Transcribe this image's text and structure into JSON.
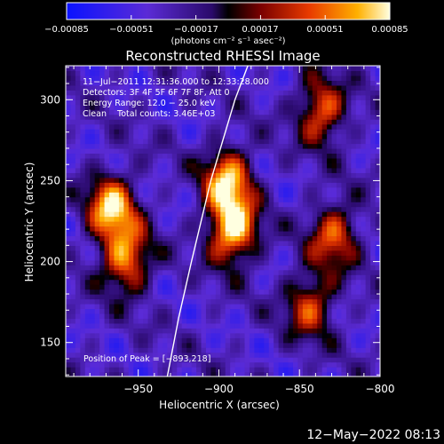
{
  "chart_data": {
    "type": "heatmap",
    "title": "Reconstructed RHESSI Image",
    "xlabel": "Heliocentric X (arcsec)",
    "ylabel": "Heliocentric Y (arcsec)",
    "xlim": [
      -995,
      -800
    ],
    "ylim": [
      129,
      321
    ],
    "xticks": [
      -950,
      -900,
      -850,
      -800
    ],
    "yticks": [
      150,
      200,
      250,
      300
    ],
    "xtick_labels": [
      "−950",
      "−900",
      "−850",
      "−800"
    ],
    "ytick_labels": [
      "150",
      "200",
      "250",
      "300"
    ],
    "colorbar": {
      "min": -0.00085,
      "max": 0.00085,
      "tick_labels": [
        "−0.00085",
        "−0.00051",
        "−0.00017",
        "0.00017",
        "0.00051",
        "0.00085"
      ],
      "unit_label": "(photons cm⁻² s⁻¹ asec⁻²)"
    },
    "annotations": [
      "11−Jul−2011 12:31:36.000 to 12:33:28.000",
      "Detectors: 3F 4F 5F 6F 7F 8F, Att 0",
      "Energy Range: 12.0 − 25.0 keV",
      "Clean    Total counts: 3.46E+03"
    ],
    "peak_text": "Position of Peak = [−893,218]",
    "peak": [
      -893,
      218
    ],
    "limb": [
      [
        -932,
        129
      ],
      [
        -925,
        165
      ],
      [
        -917,
        200
      ],
      [
        -905,
        250
      ],
      [
        -890,
        300
      ],
      [
        -882,
        321
      ]
    ],
    "sources": [
      {
        "x": -968,
        "y": 232,
        "intensity": 0.00075
      },
      {
        "x": -959,
        "y": 200,
        "intensity": 0.0006
      },
      {
        "x": -893,
        "y": 218,
        "intensity": 0.00085
      },
      {
        "x": -896,
        "y": 249,
        "intensity": 0.0007
      },
      {
        "x": -838,
        "y": 292,
        "intensity": 0.0005
      },
      {
        "x": -830,
        "y": 215,
        "intensity": 0.00045
      },
      {
        "x": -845,
        "y": 172,
        "intensity": 0.0004
      }
    ]
  },
  "timestamp": "12−May−2022 08:13"
}
